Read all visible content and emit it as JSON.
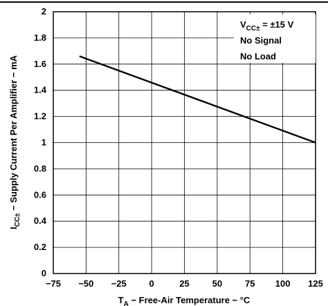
{
  "chart_data": {
    "type": "line",
    "xlabel": {
      "main": "T",
      "sub": "A",
      "rest": " − Free-Air Temperature − °C"
    },
    "ylabel": {
      "main": "I",
      "sub": "CC±",
      "rest": " − Supply Current Per Amplifier − mA"
    },
    "xlim": [
      -75,
      125
    ],
    "ylim": [
      0,
      2
    ],
    "x_ticks": [
      "−75",
      "−50",
      "−25",
      "0",
      "25",
      "50",
      "75",
      "100",
      "125"
    ],
    "y_ticks": [
      "0",
      "0.2",
      "0.4",
      "0.6",
      "0.8",
      "1",
      "1.2",
      "1.4",
      "1.6",
      "1.8",
      "2"
    ],
    "grid": true,
    "series": [
      {
        "x": [
          -55,
          125
        ],
        "y": [
          1.66,
          1.0
        ]
      }
    ],
    "annotation": {
      "vcc": {
        "main": "V",
        "sub": "CC±",
        "rest": " = ±15 V"
      },
      "lines": [
        "No Signal",
        "No Load"
      ]
    }
  }
}
